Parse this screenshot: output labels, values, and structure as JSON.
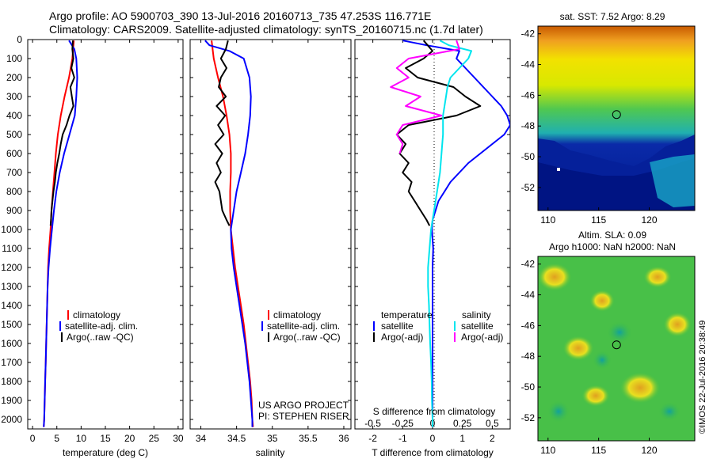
{
  "header": {
    "line1": "Argo profile: AO 5900703_390 13-Jul-2016 20160713_735 47.253S 116.771E",
    "line2": "Climatology: CARS2009. Satellite-adjusted climatology: synTS_20160715.nc (1.7d later)"
  },
  "credit": {
    "project": "US ARGO PROJECT",
    "pi": "PI: STEPHEN RISER",
    "stamp": "©IMOS 22-Jul-2016 20:38:49"
  },
  "colors": {
    "climatology": "#ff0000",
    "satellite": "#0000ff",
    "argo": "#000000",
    "sal_satellite": "#00e5ee",
    "sal_argo": "#ff00ff"
  },
  "maps": {
    "sst": {
      "title": "sat. SST: 7.52 Argo: 8.29",
      "xticks": [
        "110",
        "115",
        "120"
      ],
      "yticks": [
        "-42",
        "-44",
        "-46",
        "-48",
        "-50",
        "-52"
      ],
      "float_lon": 116.771,
      "float_lat": -47.253,
      "xlim": [
        109,
        124.5
      ],
      "ylim": [
        -53.5,
        -41.5
      ]
    },
    "sla": {
      "title1": "Altim. SLA: 0.09",
      "title2": "Argo h1000: NaN h2000: NaN",
      "xticks": [
        "110",
        "115",
        "120"
      ],
      "yticks": [
        "-42",
        "-44",
        "-46",
        "-48",
        "-50",
        "-52"
      ],
      "float_lon": 116.771,
      "float_lat": -47.253,
      "xlim": [
        109,
        124.5
      ],
      "ylim": [
        -53.5,
        -41.5
      ]
    }
  },
  "chart_data": [
    {
      "type": "line",
      "panel": "temperature",
      "xlabel": "temperature (deg C)",
      "xlim": [
        -1,
        31
      ],
      "xticks": [
        0,
        5,
        10,
        15,
        20,
        25,
        30
      ],
      "ylim": [
        2050,
        0
      ],
      "yticks": [
        0,
        100,
        200,
        300,
        400,
        500,
        600,
        700,
        800,
        900,
        1000,
        1100,
        1200,
        1300,
        1400,
        1500,
        1600,
        1700,
        1800,
        1900,
        2000
      ],
      "legend": [
        "climatology",
        "satellite-adj. clim.",
        "Argo(..raw -QC)"
      ],
      "series": [
        {
          "name": "climatology",
          "color": "#ff0000",
          "y": [
            5,
            100,
            200,
            300,
            400,
            500,
            600,
            700,
            800,
            900,
            1000,
            1100,
            1200,
            1300,
            1400,
            1500,
            1600,
            1700,
            1800,
            1900,
            2000,
            2040
          ],
          "x": [
            8.5,
            8.2,
            7.5,
            6.6,
            5.8,
            5.2,
            4.8,
            4.5,
            4.2,
            3.9,
            3.7,
            3.4,
            3.2,
            3.1,
            3.0,
            2.9,
            2.8,
            2.7,
            2.6,
            2.5,
            2.4,
            2.3
          ]
        },
        {
          "name": "satellite-adj. clim.",
          "color": "#0000ff",
          "y": [
            5,
            50,
            100,
            200,
            300,
            400,
            500,
            600,
            700,
            800,
            900,
            1000,
            1100,
            1200,
            1300,
            1400,
            1500,
            1600,
            1700,
            1800,
            1900,
            2000,
            2040
          ],
          "x": [
            7.5,
            8.6,
            9.0,
            9.2,
            9.0,
            8.7,
            7.6,
            6.5,
            5.6,
            4.9,
            4.4,
            4.0,
            3.6,
            3.3,
            3.1,
            3.0,
            2.9,
            2.8,
            2.7,
            2.6,
            2.5,
            2.4,
            2.3
          ]
        },
        {
          "name": "Argo(..raw -QC)",
          "color": "#000000",
          "y": [
            5,
            50,
            100,
            150,
            200,
            250,
            300,
            350,
            400,
            450,
            500,
            550,
            600,
            650,
            700,
            750,
            800,
            850,
            900,
            950,
            980
          ],
          "x": [
            8.3,
            8.2,
            8.4,
            8.0,
            8.6,
            7.8,
            8.1,
            8.4,
            7.6,
            7.0,
            6.2,
            5.8,
            5.5,
            5.1,
            4.8,
            4.6,
            4.3,
            4.1,
            3.9,
            3.8,
            3.7
          ]
        }
      ]
    },
    {
      "type": "line",
      "panel": "salinity",
      "xlabel": "salinity",
      "xlim": [
        33.85,
        36.1
      ],
      "xticks": [
        34,
        34.5,
        35,
        35.5,
        36
      ],
      "ylim": [
        2050,
        0
      ],
      "legend": [
        "climatology",
        "satellite-adj. clim.",
        "Argo(..raw -QC)"
      ],
      "series": [
        {
          "name": "climatology",
          "color": "#ff0000",
          "y": [
            5,
            100,
            200,
            300,
            400,
            500,
            600,
            700,
            800,
            900,
            1000,
            1100,
            1200,
            1300,
            1400,
            1500,
            1600,
            1700,
            1800,
            1900,
            2000,
            2040
          ],
          "x": [
            34.15,
            34.18,
            34.24,
            34.31,
            34.36,
            34.4,
            34.42,
            34.42,
            34.41,
            34.41,
            34.42,
            34.45,
            34.48,
            34.52,
            34.56,
            34.6,
            34.63,
            34.66,
            34.69,
            34.71,
            34.72,
            34.73
          ]
        },
        {
          "name": "satellite-adj. clim.",
          "color": "#0000ff",
          "y": [
            5,
            30,
            60,
            100,
            200,
            300,
            400,
            500,
            600,
            700,
            800,
            900,
            1000,
            1100,
            1200,
            1300,
            1400,
            1500,
            1600,
            1700,
            1800,
            1900,
            2000,
            2040
          ],
          "x": [
            34.06,
            34.12,
            34.4,
            34.6,
            34.68,
            34.7,
            34.69,
            34.66,
            34.62,
            34.56,
            34.5,
            34.46,
            34.42,
            34.43,
            34.46,
            34.5,
            34.54,
            34.58,
            34.62,
            34.65,
            34.68,
            34.7,
            34.72,
            34.72
          ]
        },
        {
          "name": "Argo(..raw -QC)",
          "color": "#000000",
          "y": [
            5,
            50,
            100,
            150,
            200,
            250,
            300,
            350,
            400,
            450,
            500,
            550,
            600,
            650,
            700,
            750,
            800,
            850,
            900,
            950,
            980
          ],
          "x": [
            34.38,
            34.35,
            34.28,
            34.36,
            34.28,
            34.25,
            34.35,
            34.22,
            34.34,
            34.24,
            34.32,
            34.2,
            34.3,
            34.22,
            34.28,
            34.2,
            34.26,
            34.28,
            34.3,
            34.36,
            34.4
          ]
        }
      ]
    },
    {
      "type": "line",
      "panel": "difference",
      "xlabel": "T difference from climatology",
      "xlabel_top": "S difference from climatology",
      "xlim": [
        -2.6,
        2.6
      ],
      "xticks": [
        "-2",
        "-1",
        "0",
        "1",
        "2"
      ],
      "xticks_top": [
        "-0.5",
        "-0.25",
        "0",
        "0.25",
        "0.5"
      ],
      "ylim": [
        2050,
        0
      ],
      "legend": {
        "temperature": "temperature",
        "salinity": "salinity",
        "satellite": "satellite",
        "argo_adj": "Argo(-adj)"
      },
      "series": [
        {
          "name": "satellite",
          "group": "temperature",
          "color": "#0000ff",
          "y": [
            5,
            30,
            60,
            100,
            150,
            200,
            250,
            300,
            350,
            400,
            450,
            500,
            550,
            600,
            650,
            700,
            750,
            800,
            850,
            900,
            950,
            1000,
            1100,
            1200,
            1300,
            1400,
            1500,
            1600,
            1700,
            1800,
            1900,
            2000,
            2040
          ],
          "x": [
            -1.0,
            -0.2,
            0.9,
            0.8,
            1.1,
            1.4,
            1.7,
            2.0,
            2.3,
            2.5,
            2.6,
            2.4,
            2.0,
            1.6,
            1.2,
            0.9,
            0.6,
            0.4,
            0.2,
            0.1,
            0.0,
            -0.02,
            0.02,
            0.0,
            0.0,
            0.0,
            0.0,
            0.0,
            0.0,
            0.0,
            0.0,
            0.0,
            0.0
          ]
        },
        {
          "name": "Argo(-adj)",
          "group": "temperature",
          "color": "#000000",
          "y": [
            5,
            60,
            100,
            150,
            200,
            250,
            300,
            350,
            400,
            450,
            500,
            550,
            600,
            650,
            700,
            750,
            800,
            850,
            900,
            950,
            980
          ],
          "x": [
            -0.3,
            0.0,
            -0.3,
            -0.9,
            -0.5,
            0.7,
            1.1,
            1.6,
            0.8,
            -0.8,
            -1.2,
            -0.9,
            -1.1,
            -0.8,
            -1.0,
            -0.7,
            -0.8,
            -0.6,
            -0.4,
            -0.2,
            -0.1
          ]
        },
        {
          "name": "satellite",
          "group": "salinity",
          "color": "#00e5ee",
          "y": [
            5,
            30,
            60,
            100,
            150,
            200,
            250,
            300,
            350,
            400,
            500,
            600,
            700,
            800,
            900,
            1000,
            1100,
            1200,
            1300,
            1400,
            1500,
            1600,
            1700,
            1800,
            1900,
            2000,
            2040
          ],
          "x": [
            0.25,
            0.55,
            1.3,
            1.2,
            0.9,
            0.6,
            0.5,
            0.45,
            0.4,
            0.35,
            0.35,
            0.3,
            0.25,
            0.15,
            0.05,
            -0.05,
            -0.1,
            -0.15,
            -0.15,
            -0.12,
            -0.1,
            -0.08,
            -0.05,
            -0.03,
            -0.02,
            0.0,
            0.0
          ]
        },
        {
          "name": "Argo(-adj)",
          "group": "salinity",
          "color": "#ff00ff",
          "y": [
            5,
            50,
            100,
            150,
            200,
            250,
            300,
            350,
            400,
            450,
            500,
            550,
            600
          ],
          "x": [
            0.8,
            0.9,
            -0.8,
            -1.2,
            -0.8,
            -1.4,
            -0.4,
            -0.9,
            0.3,
            -1.0,
            -1.2,
            -1.0,
            -1.1
          ]
        }
      ]
    }
  ]
}
